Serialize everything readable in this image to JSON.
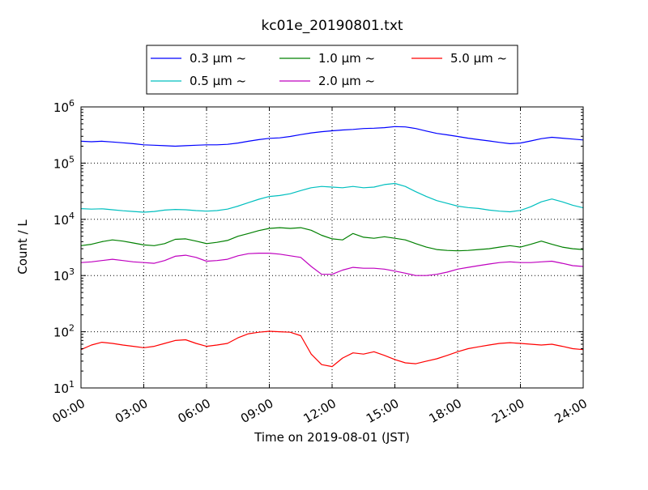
{
  "chart_data": {
    "type": "line",
    "title": "kc01e_20190801.txt",
    "xlabel": "Time on 2019-08-01 (JST)",
    "ylabel": "Count / L",
    "y_scale": "log",
    "ylim": [
      10,
      1000000
    ],
    "xlim": [
      "00:00",
      "24:00"
    ],
    "grid": true,
    "legend_position": "top-center",
    "x_tick_labels": [
      "00:00",
      "03:00",
      "06:00",
      "09:00",
      "12:00",
      "15:00",
      "18:00",
      "21:00",
      "24:00"
    ],
    "y_tick_labels": [
      {
        "base": "10",
        "exp": "1",
        "value": 10
      },
      {
        "base": "10",
        "exp": "2",
        "value": 100
      },
      {
        "base": "10",
        "exp": "3",
        "value": 1000
      },
      {
        "base": "10",
        "exp": "4",
        "value": 10000
      },
      {
        "base": "10",
        "exp": "5",
        "value": 100000
      },
      {
        "base": "10",
        "exp": "6",
        "value": 1000000
      }
    ],
    "series": [
      {
        "name": "0.3 μm ~",
        "color": "#0000ff",
        "points": [
          [
            "00:00",
            245000
          ],
          [
            "00:30",
            240000
          ],
          [
            "01:00",
            245000
          ],
          [
            "01:30",
            238000
          ],
          [
            "02:00",
            230000
          ],
          [
            "02:30",
            222000
          ],
          [
            "03:00",
            212000
          ],
          [
            "03:30",
            208000
          ],
          [
            "04:00",
            204000
          ],
          [
            "04:30",
            200000
          ],
          [
            "05:00",
            204000
          ],
          [
            "05:30",
            208000
          ],
          [
            "06:00",
            212000
          ],
          [
            "06:30",
            212000
          ],
          [
            "07:00",
            216000
          ],
          [
            "07:30",
            228000
          ],
          [
            "08:00",
            245000
          ],
          [
            "08:30",
            262000
          ],
          [
            "09:00",
            276000
          ],
          [
            "09:30",
            282000
          ],
          [
            "10:00",
            298000
          ],
          [
            "10:30",
            322000
          ],
          [
            "11:00",
            345000
          ],
          [
            "11:30",
            362000
          ],
          [
            "12:00",
            376000
          ],
          [
            "12:30",
            388000
          ],
          [
            "13:00",
            398000
          ],
          [
            "13:30",
            412000
          ],
          [
            "14:00",
            418000
          ],
          [
            "14:30",
            428000
          ],
          [
            "15:00",
            446000
          ],
          [
            "15:30",
            440000
          ],
          [
            "16:00",
            412000
          ],
          [
            "16:30",
            372000
          ],
          [
            "17:00",
            338000
          ],
          [
            "17:30",
            318000
          ],
          [
            "18:00",
            298000
          ],
          [
            "18:30",
            278000
          ],
          [
            "19:00",
            262000
          ],
          [
            "19:30",
            248000
          ],
          [
            "20:00",
            234000
          ],
          [
            "20:30",
            222000
          ],
          [
            "21:00",
            228000
          ],
          [
            "21:30",
            248000
          ],
          [
            "22:00",
            272000
          ],
          [
            "22:30",
            288000
          ],
          [
            "23:00",
            278000
          ],
          [
            "23:30",
            268000
          ],
          [
            "24:00",
            258000
          ]
        ]
      },
      {
        "name": "0.5 μm ~",
        "color": "#00bfbf",
        "points": [
          [
            "00:00",
            15500
          ],
          [
            "00:30",
            15200
          ],
          [
            "01:00",
            15400
          ],
          [
            "01:30",
            14800
          ],
          [
            "02:00",
            14200
          ],
          [
            "02:30",
            13800
          ],
          [
            "03:00",
            13400
          ],
          [
            "03:30",
            13800
          ],
          [
            "04:00",
            14600
          ],
          [
            "04:30",
            15000
          ],
          [
            "05:00",
            14800
          ],
          [
            "05:30",
            14300
          ],
          [
            "06:00",
            14000
          ],
          [
            "06:30",
            14300
          ],
          [
            "07:00",
            15200
          ],
          [
            "07:30",
            17200
          ],
          [
            "08:00",
            19800
          ],
          [
            "08:30",
            22800
          ],
          [
            "09:00",
            25500
          ],
          [
            "09:30",
            26500
          ],
          [
            "10:00",
            28500
          ],
          [
            "10:30",
            32500
          ],
          [
            "11:00",
            36500
          ],
          [
            "11:30",
            38500
          ],
          [
            "12:00",
            37500
          ],
          [
            "12:30",
            36500
          ],
          [
            "13:00",
            38500
          ],
          [
            "13:30",
            36500
          ],
          [
            "14:00",
            37500
          ],
          [
            "14:30",
            41500
          ],
          [
            "15:00",
            43500
          ],
          [
            "15:30",
            38500
          ],
          [
            "16:00",
            31000
          ],
          [
            "16:30",
            25500
          ],
          [
            "17:00",
            21500
          ],
          [
            "17:30",
            19200
          ],
          [
            "18:00",
            17200
          ],
          [
            "18:30",
            16200
          ],
          [
            "19:00",
            15600
          ],
          [
            "19:30",
            14600
          ],
          [
            "20:00",
            14000
          ],
          [
            "20:30",
            13600
          ],
          [
            "21:00",
            14400
          ],
          [
            "21:30",
            16800
          ],
          [
            "22:00",
            20500
          ],
          [
            "22:30",
            23000
          ],
          [
            "23:00",
            20500
          ],
          [
            "23:30",
            17800
          ],
          [
            "24:00",
            16000
          ]
        ]
      },
      {
        "name": "1.0 μm ~",
        "color": "#008000",
        "points": [
          [
            "00:00",
            3400
          ],
          [
            "00:30",
            3600
          ],
          [
            "01:00",
            4000
          ],
          [
            "01:30",
            4300
          ],
          [
            "02:00",
            4100
          ],
          [
            "02:30",
            3800
          ],
          [
            "03:00",
            3500
          ],
          [
            "03:30",
            3400
          ],
          [
            "04:00",
            3700
          ],
          [
            "04:30",
            4400
          ],
          [
            "05:00",
            4500
          ],
          [
            "05:30",
            4100
          ],
          [
            "06:00",
            3700
          ],
          [
            "06:30",
            3900
          ],
          [
            "07:00",
            4200
          ],
          [
            "07:30",
            5000
          ],
          [
            "08:00",
            5600
          ],
          [
            "08:30",
            6300
          ],
          [
            "09:00",
            6900
          ],
          [
            "09:30",
            7100
          ],
          [
            "10:00",
            6900
          ],
          [
            "10:30",
            7100
          ],
          [
            "11:00",
            6400
          ],
          [
            "11:30",
            5200
          ],
          [
            "12:00",
            4500
          ],
          [
            "12:30",
            4300
          ],
          [
            "13:00",
            5600
          ],
          [
            "13:30",
            4800
          ],
          [
            "14:00",
            4600
          ],
          [
            "14:30",
            4900
          ],
          [
            "15:00",
            4600
          ],
          [
            "15:30",
            4300
          ],
          [
            "16:00",
            3700
          ],
          [
            "16:30",
            3200
          ],
          [
            "17:00",
            2900
          ],
          [
            "17:30",
            2800
          ],
          [
            "18:00",
            2750
          ],
          [
            "18:30",
            2800
          ],
          [
            "19:00",
            2900
          ],
          [
            "19:30",
            3000
          ],
          [
            "20:00",
            3200
          ],
          [
            "20:30",
            3400
          ],
          [
            "21:00",
            3200
          ],
          [
            "21:30",
            3600
          ],
          [
            "22:00",
            4100
          ],
          [
            "22:30",
            3600
          ],
          [
            "23:00",
            3200
          ],
          [
            "23:30",
            3000
          ],
          [
            "24:00",
            2900
          ]
        ]
      },
      {
        "name": "2.0 μm ~",
        "color": "#bf00bf",
        "points": [
          [
            "00:00",
            1700
          ],
          [
            "00:30",
            1750
          ],
          [
            "01:00",
            1850
          ],
          [
            "01:30",
            1950
          ],
          [
            "02:00",
            1850
          ],
          [
            "02:30",
            1750
          ],
          [
            "03:00",
            1700
          ],
          [
            "03:30",
            1650
          ],
          [
            "04:00",
            1850
          ],
          [
            "04:30",
            2200
          ],
          [
            "05:00",
            2300
          ],
          [
            "05:30",
            2100
          ],
          [
            "06:00",
            1800
          ],
          [
            "06:30",
            1850
          ],
          [
            "07:00",
            1950
          ],
          [
            "07:30",
            2250
          ],
          [
            "08:00",
            2450
          ],
          [
            "08:30",
            2500
          ],
          [
            "09:00",
            2500
          ],
          [
            "09:30",
            2400
          ],
          [
            "10:00",
            2250
          ],
          [
            "10:30",
            2100
          ],
          [
            "11:00",
            1450
          ],
          [
            "11:30",
            1050
          ],
          [
            "12:00",
            1050
          ],
          [
            "12:30",
            1250
          ],
          [
            "13:00",
            1400
          ],
          [
            "13:30",
            1350
          ],
          [
            "14:00",
            1350
          ],
          [
            "14:30",
            1300
          ],
          [
            "15:00",
            1200
          ],
          [
            "15:30",
            1100
          ],
          [
            "16:00",
            1000
          ],
          [
            "16:30",
            1000
          ],
          [
            "17:00",
            1050
          ],
          [
            "17:30",
            1150
          ],
          [
            "18:00",
            1300
          ],
          [
            "18:30",
            1400
          ],
          [
            "19:00",
            1500
          ],
          [
            "19:30",
            1600
          ],
          [
            "20:00",
            1700
          ],
          [
            "20:30",
            1750
          ],
          [
            "21:00",
            1700
          ],
          [
            "21:30",
            1700
          ],
          [
            "22:00",
            1750
          ],
          [
            "22:30",
            1800
          ],
          [
            "23:00",
            1650
          ],
          [
            "23:30",
            1500
          ],
          [
            "24:00",
            1450
          ]
        ]
      },
      {
        "name": "5.0 μm ~",
        "color": "#ff0000",
        "points": [
          [
            "00:00",
            48
          ],
          [
            "00:30",
            58
          ],
          [
            "01:00",
            65
          ],
          [
            "01:30",
            62
          ],
          [
            "02:00",
            58
          ],
          [
            "02:30",
            55
          ],
          [
            "03:00",
            52
          ],
          [
            "03:30",
            55
          ],
          [
            "04:00",
            62
          ],
          [
            "04:30",
            70
          ],
          [
            "05:00",
            72
          ],
          [
            "05:30",
            62
          ],
          [
            "06:00",
            55
          ],
          [
            "06:30",
            58
          ],
          [
            "07:00",
            62
          ],
          [
            "07:30",
            78
          ],
          [
            "08:00",
            92
          ],
          [
            "08:30",
            98
          ],
          [
            "09:00",
            102
          ],
          [
            "09:30",
            100
          ],
          [
            "10:00",
            98
          ],
          [
            "10:30",
            85
          ],
          [
            "11:00",
            40
          ],
          [
            "11:30",
            26
          ],
          [
            "12:00",
            24
          ],
          [
            "12:30",
            34
          ],
          [
            "13:00",
            42
          ],
          [
            "13:30",
            40
          ],
          [
            "14:00",
            44
          ],
          [
            "14:30",
            38
          ],
          [
            "15:00",
            32
          ],
          [
            "15:30",
            28
          ],
          [
            "16:00",
            27
          ],
          [
            "16:30",
            30
          ],
          [
            "17:00",
            33
          ],
          [
            "17:30",
            38
          ],
          [
            "18:00",
            44
          ],
          [
            "18:30",
            50
          ],
          [
            "19:00",
            54
          ],
          [
            "19:30",
            58
          ],
          [
            "20:00",
            62
          ],
          [
            "20:30",
            64
          ],
          [
            "21:00",
            62
          ],
          [
            "21:30",
            60
          ],
          [
            "22:00",
            58
          ],
          [
            "22:30",
            60
          ],
          [
            "23:00",
            55
          ],
          [
            "23:30",
            50
          ],
          [
            "24:00",
            48
          ]
        ]
      }
    ]
  }
}
